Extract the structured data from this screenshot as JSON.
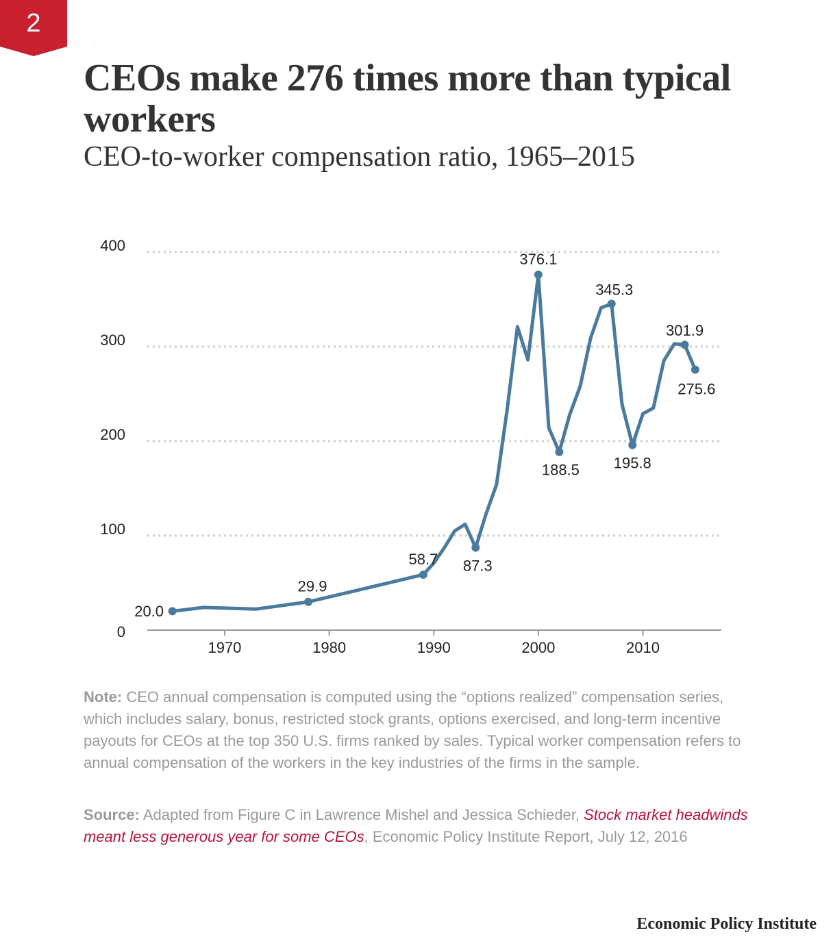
{
  "badge": "2",
  "chart_data": {
    "type": "line",
    "title": "CEOs make 276 times more than typical workers",
    "subtitle": "CEO-to-worker compensation ratio, 1965–2015",
    "x": [
      1965,
      1968,
      1973,
      1978,
      1989,
      1990,
      1991,
      1992,
      1993,
      1994,
      1995,
      1996,
      1997,
      1998,
      1999,
      2000,
      2001,
      2002,
      2003,
      2004,
      2005,
      2006,
      2007,
      2008,
      2009,
      2010,
      2011,
      2012,
      2013,
      2014,
      2015
    ],
    "series": [
      {
        "name": "CEO-to-worker compensation ratio",
        "color": "#4a7b9d",
        "values": [
          20.0,
          24,
          22.3,
          29.9,
          58.7,
          71,
          87,
          105,
          112,
          87.3,
          123,
          154,
          232,
          321,
          286,
          376.1,
          214,
          188.5,
          228,
          258,
          309,
          341,
          345.3,
          239,
          195.8,
          229,
          235,
          285,
          303,
          301.9,
          275.6
        ],
        "value_labels": [
          "20.0",
          null,
          null,
          "29.9",
          "58.7",
          null,
          null,
          null,
          null,
          "87.3",
          null,
          null,
          null,
          null,
          null,
          "376.1",
          null,
          "188.5",
          null,
          null,
          null,
          null,
          "345.3",
          null,
          "195.8",
          null,
          null,
          null,
          null,
          "301.9",
          "275.6"
        ]
      }
    ],
    "xlim": [
      1962.6,
      2017.5
    ],
    "xticks": [
      1970,
      1980,
      1990,
      2000,
      2010
    ],
    "ylim": [
      0,
      400
    ],
    "yticks": [
      0,
      100,
      200,
      300,
      400
    ],
    "grid": true
  },
  "note": {
    "label": "Note:",
    "text": "CEO annual compensation is computed using the “options realized” compensation series, which includes salary, bonus, restricted stock grants, options exercised, and long-term incentive payouts for CEOs at the top 350 U.S. firms ranked by sales. Typical worker compensation refers to annual compensation of the workers in the key industries of the firms in the sample."
  },
  "source": {
    "label": "Source:",
    "text_before": "Adapted from Figure C in Lawrence Mishel and Jessica Schieder,",
    "link": "Stock market headwinds meant less generous year for some CEOs",
    "text_after": ", Economic Policy Institute Report, July 12, 2016"
  },
  "footer": "Economic Policy Institute"
}
